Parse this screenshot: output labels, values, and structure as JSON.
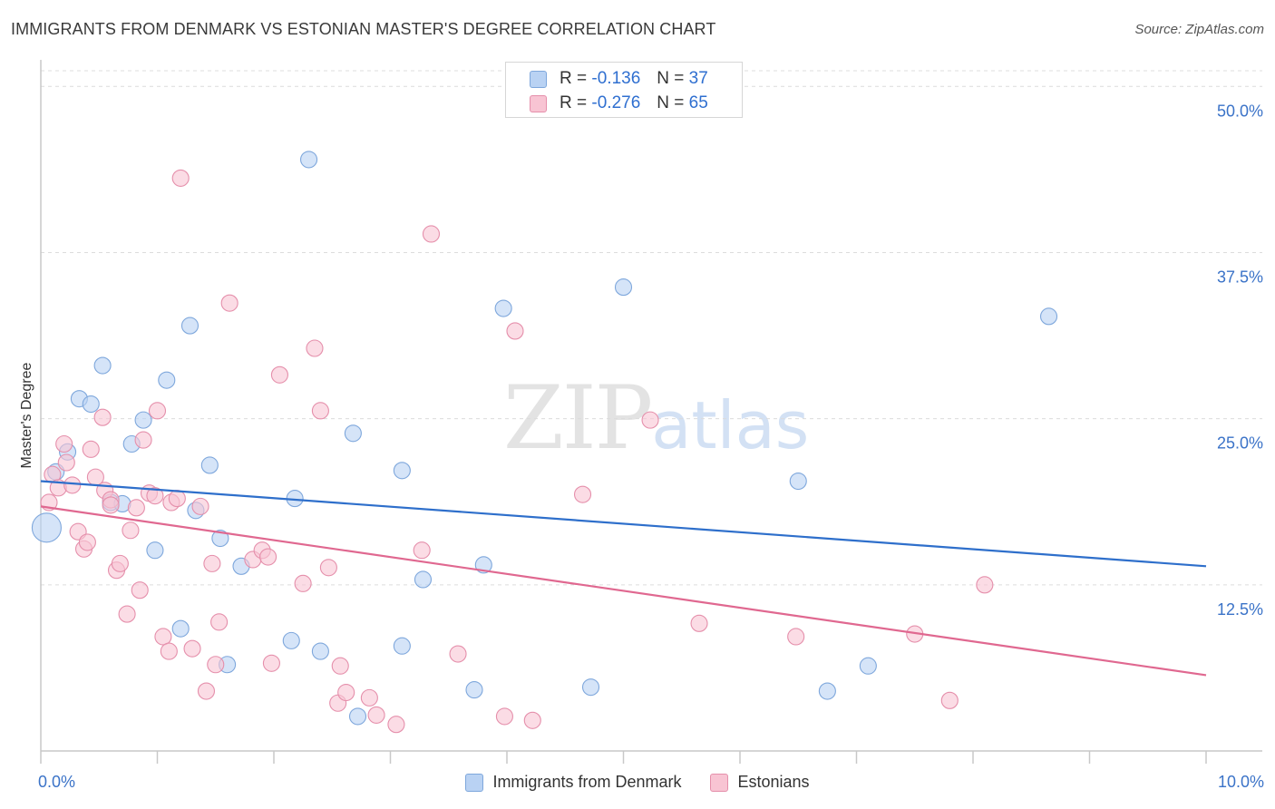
{
  "header": {
    "title": "IMMIGRANTS FROM DENMARK VS ESTONIAN MASTER'S DEGREE CORRELATION CHART",
    "source": "Source: ZipAtlas.com"
  },
  "watermark": {
    "zip": "ZIP",
    "atlas": "atlas"
  },
  "legend_top": {
    "r_label": "R =",
    "n_label": "N =",
    "rows": [
      {
        "r": "-0.136",
        "n": "37"
      },
      {
        "r": "-0.276",
        "n": "65"
      }
    ]
  },
  "colors": {
    "blue_fill": "#b9d2f3",
    "blue_stroke": "#7ea7dc",
    "blue_line": "#2e6fcb",
    "pink_fill": "#f8c4d3",
    "pink_stroke": "#e58fab",
    "pink_line": "#e06890",
    "tick_label": "#3b73c8",
    "grid": "#dcdcdc"
  },
  "chart_data": {
    "type": "scatter",
    "title": "IMMIGRANTS FROM DENMARK VS ESTONIAN MASTER'S DEGREE CORRELATION CHART",
    "xlabel": "",
    "ylabel": "Master's Degree",
    "xlim": [
      0,
      10
    ],
    "ylim": [
      0,
      52
    ],
    "x_tick_labels": [
      {
        "value": 0,
        "label": "0.0%"
      },
      {
        "value": 10,
        "label": "10.0%"
      }
    ],
    "y_tick_labels": [
      {
        "value": 12.5,
        "label": "12.5%"
      },
      {
        "value": 25,
        "label": "25.0%"
      },
      {
        "value": 37.5,
        "label": "37.5%"
      },
      {
        "value": 50,
        "label": "50.0%"
      }
    ],
    "x_minor_ticks": [
      1,
      2,
      3,
      4,
      5,
      6,
      7,
      8,
      9,
      10
    ],
    "grid": true,
    "legend_position": "bottom",
    "series": [
      {
        "name": "Immigrants from Denmark",
        "color": "blue",
        "trend": {
          "x": [
            0,
            10
          ],
          "y": [
            20.3,
            13.9
          ]
        },
        "points": [
          {
            "x": 0.05,
            "y": 16.8,
            "big": true
          },
          {
            "x": 0.13,
            "y": 21.0
          },
          {
            "x": 0.23,
            "y": 22.5
          },
          {
            "x": 0.33,
            "y": 26.5
          },
          {
            "x": 0.43,
            "y": 26.1
          },
          {
            "x": 0.53,
            "y": 29.0
          },
          {
            "x": 0.6,
            "y": 18.7
          },
          {
            "x": 0.7,
            "y": 18.6
          },
          {
            "x": 0.78,
            "y": 23.1
          },
          {
            "x": 0.88,
            "y": 24.9
          },
          {
            "x": 0.98,
            "y": 15.1
          },
          {
            "x": 1.08,
            "y": 27.9
          },
          {
            "x": 1.2,
            "y": 9.2
          },
          {
            "x": 1.28,
            "y": 32.0
          },
          {
            "x": 1.33,
            "y": 18.1
          },
          {
            "x": 1.45,
            "y": 21.5
          },
          {
            "x": 1.54,
            "y": 16.0
          },
          {
            "x": 1.6,
            "y": 6.5
          },
          {
            "x": 1.72,
            "y": 13.9
          },
          {
            "x": 2.15,
            "y": 8.3
          },
          {
            "x": 2.18,
            "y": 19.0
          },
          {
            "x": 2.3,
            "y": 44.5
          },
          {
            "x": 2.4,
            "y": 7.5
          },
          {
            "x": 2.68,
            "y": 23.9
          },
          {
            "x": 2.72,
            "y": 2.6
          },
          {
            "x": 3.1,
            "y": 7.9
          },
          {
            "x": 3.1,
            "y": 21.1
          },
          {
            "x": 3.28,
            "y": 12.9
          },
          {
            "x": 3.72,
            "y": 4.6
          },
          {
            "x": 3.8,
            "y": 14.0
          },
          {
            "x": 3.97,
            "y": 33.3
          },
          {
            "x": 4.72,
            "y": 4.8
          },
          {
            "x": 5.0,
            "y": 34.9
          },
          {
            "x": 6.5,
            "y": 20.3
          },
          {
            "x": 6.75,
            "y": 4.5
          },
          {
            "x": 7.1,
            "y": 6.4
          },
          {
            "x": 8.65,
            "y": 32.7
          }
        ]
      },
      {
        "name": "Estonians",
        "color": "pink",
        "trend": {
          "x": [
            0,
            10
          ],
          "y": [
            18.4,
            5.7
          ]
        },
        "points": [
          {
            "x": 0.07,
            "y": 18.7
          },
          {
            "x": 0.1,
            "y": 20.8
          },
          {
            "x": 0.15,
            "y": 19.8
          },
          {
            "x": 0.2,
            "y": 23.1
          },
          {
            "x": 0.22,
            "y": 21.7
          },
          {
            "x": 0.27,
            "y": 20.0
          },
          {
            "x": 0.32,
            "y": 16.5
          },
          {
            "x": 0.37,
            "y": 15.2
          },
          {
            "x": 0.4,
            "y": 15.7
          },
          {
            "x": 0.43,
            "y": 22.7
          },
          {
            "x": 0.47,
            "y": 20.6
          },
          {
            "x": 0.53,
            "y": 25.1
          },
          {
            "x": 0.55,
            "y": 19.6
          },
          {
            "x": 0.6,
            "y": 18.9
          },
          {
            "x": 0.6,
            "y": 18.5
          },
          {
            "x": 0.65,
            "y": 13.6
          },
          {
            "x": 0.68,
            "y": 14.1
          },
          {
            "x": 0.74,
            "y": 10.3
          },
          {
            "x": 0.77,
            "y": 16.6
          },
          {
            "x": 0.82,
            "y": 18.3
          },
          {
            "x": 0.85,
            "y": 12.1
          },
          {
            "x": 0.88,
            "y": 23.4
          },
          {
            "x": 0.93,
            "y": 19.4
          },
          {
            "x": 0.98,
            "y": 19.2
          },
          {
            "x": 1.0,
            "y": 25.6
          },
          {
            "x": 1.05,
            "y": 8.6
          },
          {
            "x": 1.1,
            "y": 7.5
          },
          {
            "x": 1.12,
            "y": 18.7
          },
          {
            "x": 1.17,
            "y": 19.0
          },
          {
            "x": 1.2,
            "y": 43.1
          },
          {
            "x": 1.3,
            "y": 7.7
          },
          {
            "x": 1.37,
            "y": 18.4
          },
          {
            "x": 1.42,
            "y": 4.5
          },
          {
            "x": 1.47,
            "y": 14.1
          },
          {
            "x": 1.5,
            "y": 6.5
          },
          {
            "x": 1.53,
            "y": 9.7
          },
          {
            "x": 1.62,
            "y": 33.7
          },
          {
            "x": 1.82,
            "y": 14.4
          },
          {
            "x": 1.9,
            "y": 15.1
          },
          {
            "x": 1.95,
            "y": 14.6
          },
          {
            "x": 1.98,
            "y": 6.6
          },
          {
            "x": 2.05,
            "y": 28.3
          },
          {
            "x": 2.25,
            "y": 12.6
          },
          {
            "x": 2.35,
            "y": 30.3
          },
          {
            "x": 2.4,
            "y": 25.6
          },
          {
            "x": 2.47,
            "y": 13.8
          },
          {
            "x": 2.55,
            "y": 3.6
          },
          {
            "x": 2.57,
            "y": 6.4
          },
          {
            "x": 2.62,
            "y": 4.4
          },
          {
            "x": 2.82,
            "y": 4.0
          },
          {
            "x": 2.88,
            "y": 2.7
          },
          {
            "x": 3.05,
            "y": 2.0
          },
          {
            "x": 3.27,
            "y": 15.1
          },
          {
            "x": 3.35,
            "y": 38.9
          },
          {
            "x": 3.58,
            "y": 7.3
          },
          {
            "x": 3.98,
            "y": 2.6
          },
          {
            "x": 4.07,
            "y": 31.6
          },
          {
            "x": 4.22,
            "y": 2.3
          },
          {
            "x": 4.65,
            "y": 19.3
          },
          {
            "x": 5.23,
            "y": 24.9
          },
          {
            "x": 5.65,
            "y": 9.6
          },
          {
            "x": 6.48,
            "y": 8.6
          },
          {
            "x": 7.5,
            "y": 8.8
          },
          {
            "x": 7.8,
            "y": 3.8
          },
          {
            "x": 8.1,
            "y": 12.5
          }
        ]
      }
    ]
  }
}
